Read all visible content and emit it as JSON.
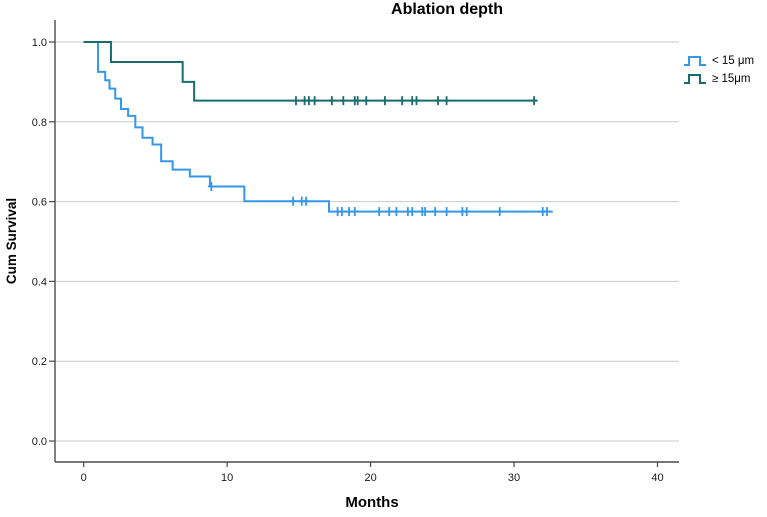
{
  "title": "Ablation depth",
  "legend": {
    "items": [
      {
        "label": "< 15 μm",
        "color": "#3597E8"
      },
      {
        "label": "≥ 15μm",
        "color": "#1A6B6B"
      }
    ]
  },
  "chart_data": {
    "type": "line",
    "subtype": "kaplan-meier-step-survival",
    "title": "Ablation depth",
    "xlabel": "Months",
    "ylabel": "Cum Survival",
    "xticks": [
      0,
      10,
      20,
      30,
      40
    ],
    "yticks": [
      0.0,
      0.2,
      0.4,
      0.6,
      0.8,
      1.0
    ],
    "xlim": [
      -2,
      41.5
    ],
    "ylim": [
      -0.05,
      1.05
    ],
    "grid": "horizontal",
    "legend_position": "top-right",
    "colors": {
      "grid": "#C9C9C9",
      "axis": "#4A4A4A",
      "text": "#1A1A1A"
    },
    "series": [
      {
        "name": "< 15 μm",
        "color": "#3597E8",
        "steps": [
          [
            0,
            1.0
          ],
          [
            1.0,
            0.925
          ],
          [
            1.5,
            0.904
          ],
          [
            1.8,
            0.883
          ],
          [
            2.2,
            0.858
          ],
          [
            2.6,
            0.832
          ],
          [
            3.1,
            0.815
          ],
          [
            3.6,
            0.786
          ],
          [
            4.1,
            0.76
          ],
          [
            4.8,
            0.743
          ],
          [
            5.4,
            0.701
          ],
          [
            6.2,
            0.68
          ],
          [
            7.4,
            0.663
          ],
          [
            8.8,
            0.638
          ],
          [
            11.2,
            0.601
          ],
          [
            17.1,
            0.575
          ]
        ],
        "end": 32.7,
        "censored": [
          [
            8.9,
            0.638
          ],
          [
            14.6,
            0.601
          ],
          [
            15.2,
            0.601
          ],
          [
            15.5,
            0.601
          ],
          [
            17.7,
            0.575
          ],
          [
            18.0,
            0.575
          ],
          [
            18.5,
            0.575
          ],
          [
            18.9,
            0.575
          ],
          [
            20.6,
            0.575
          ],
          [
            21.3,
            0.575
          ],
          [
            21.8,
            0.575
          ],
          [
            22.6,
            0.575
          ],
          [
            22.9,
            0.575
          ],
          [
            23.6,
            0.575
          ],
          [
            23.8,
            0.575
          ],
          [
            24.5,
            0.575
          ],
          [
            25.3,
            0.575
          ],
          [
            26.4,
            0.575
          ],
          [
            26.7,
            0.575
          ],
          [
            29.0,
            0.575
          ],
          [
            32.0,
            0.575
          ],
          [
            32.3,
            0.575
          ]
        ]
      },
      {
        "name": "≥ 15μm",
        "color": "#1A6B6B",
        "steps": [
          [
            0,
            1.0
          ],
          [
            1.9,
            0.95
          ],
          [
            6.9,
            0.9
          ],
          [
            7.7,
            0.853
          ]
        ],
        "end": 31.6,
        "censored": [
          [
            14.8,
            0.853
          ],
          [
            15.4,
            0.853
          ],
          [
            15.7,
            0.853
          ],
          [
            16.1,
            0.853
          ],
          [
            17.3,
            0.853
          ],
          [
            18.1,
            0.853
          ],
          [
            18.9,
            0.853
          ],
          [
            19.1,
            0.853
          ],
          [
            19.7,
            0.853
          ],
          [
            21.0,
            0.853
          ],
          [
            22.2,
            0.853
          ],
          [
            22.9,
            0.853
          ],
          [
            23.2,
            0.853
          ],
          [
            24.7,
            0.853
          ],
          [
            25.3,
            0.853
          ],
          [
            31.4,
            0.853
          ]
        ]
      }
    ]
  }
}
